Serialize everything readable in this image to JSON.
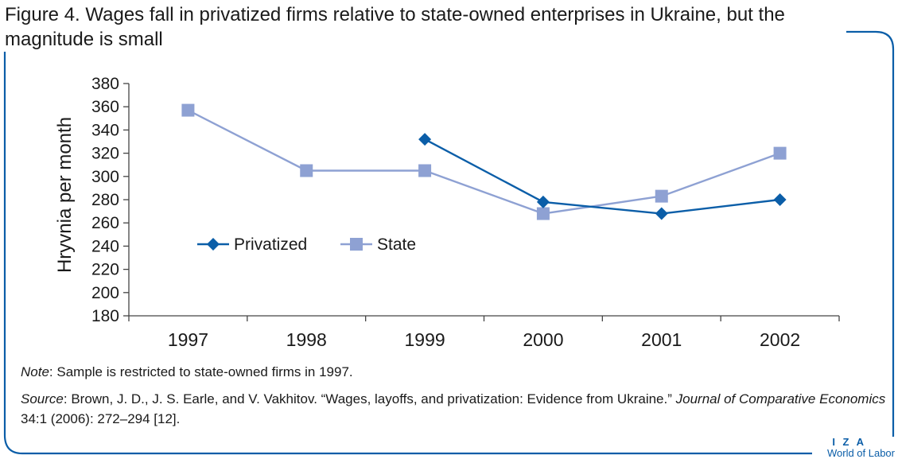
{
  "figure": {
    "title": "Figure 4. Wages fall in privatized firms relative to state-owned enterprises in Ukraine, but the magnitude is small",
    "note_label": "Note",
    "note_text": ": Sample is restricted to state-owned firms in 1997.",
    "source_label": "Source",
    "source_text_1": ": Brown, J. D., J. S. Earle, and V. Vakhitov. “Wages, layoffs, and privatization: Evidence from Ukraine.” ",
    "source_journal": "Journal of Comparative Economics",
    "source_text_2": " 34:1 (2006): 272–294 [12].",
    "logo_top": "I Z A",
    "logo_bottom": "World of Labor"
  },
  "colors": {
    "frame": "#0b5ea8",
    "privatized": "#0b5ea8",
    "state": "#8ea1d3",
    "axis": "#444444"
  },
  "chart_data": {
    "type": "line",
    "x": [
      "1997",
      "1998",
      "1999",
      "2000",
      "2001",
      "2002"
    ],
    "ylabel": "Hryvnia per month",
    "xlabel": "",
    "ylim": [
      180,
      380
    ],
    "yticks": [
      180,
      200,
      220,
      240,
      260,
      280,
      300,
      320,
      340,
      360,
      380
    ],
    "grid": false,
    "legend_position": "center-left",
    "series": [
      {
        "name": "Privatized",
        "marker": "diamond",
        "color": "#0b5ea8",
        "values": [
          null,
          null,
          332,
          278,
          268,
          280
        ]
      },
      {
        "name": "State",
        "marker": "square",
        "color": "#8ea1d3",
        "values": [
          357,
          305,
          305,
          268,
          283,
          320
        ]
      }
    ]
  }
}
